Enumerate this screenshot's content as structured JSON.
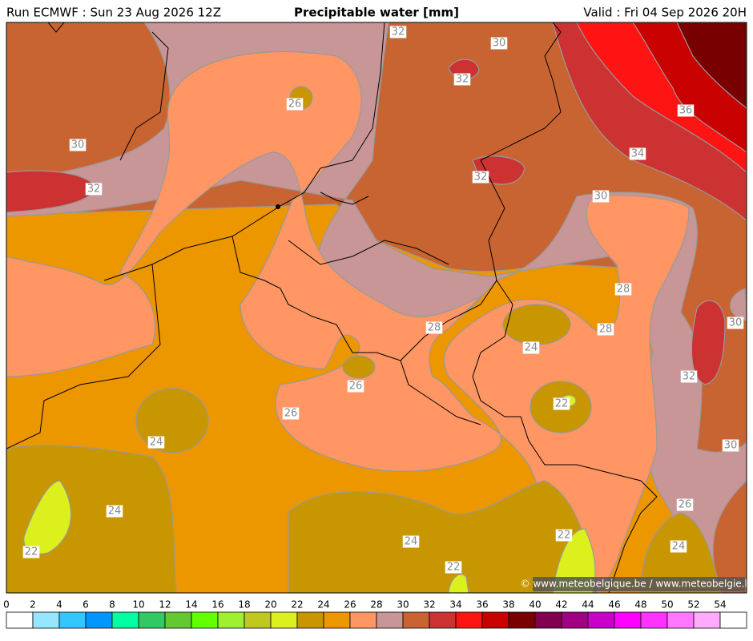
{
  "header": {
    "left": "Run ECMWF : Sun 23 Aug 2026 12Z",
    "title": "Precipitable water [mm]",
    "right": "Valid : Fri 04 Sep 2026 20H"
  },
  "contour_labels": [
    "32",
    "30",
    "32",
    "26",
    "30",
    "32",
    "36",
    "34",
    "32",
    "30",
    "28",
    "28",
    "28",
    "30",
    "24",
    "32",
    "26",
    "26",
    "22",
    "24",
    "30",
    "24",
    "26",
    "22",
    "24",
    "24",
    "22",
    "22"
  ],
  "credit": "© www.meteobelgique.be / www.meteobelgie.be",
  "colorbar": {
    "ticks": [
      0,
      2,
      4,
      6,
      8,
      10,
      12,
      14,
      16,
      18,
      20,
      22,
      24,
      26,
      28,
      30,
      32,
      34,
      36,
      38,
      40,
      42,
      44,
      46,
      48,
      50,
      52,
      54
    ],
    "colors": [
      "#ffffff",
      "#96e6ff",
      "#32c8ff",
      "#0096ff",
      "#00ffa0",
      "#32c864",
      "#64c832",
      "#64ff00",
      "#a0f032",
      "#bec81e",
      "#dcf01e",
      "#c89600",
      "#ec9600",
      "#ff9664",
      "#c89696",
      "#c86432",
      "#cd3232",
      "#ff1414",
      "#c80000",
      "#780000",
      "#820050",
      "#a00082",
      "#c800c8",
      "#ff00ff",
      "#ff32ff",
      "#ff78ff",
      "#ffaaff",
      "#ffffff"
    ]
  }
}
